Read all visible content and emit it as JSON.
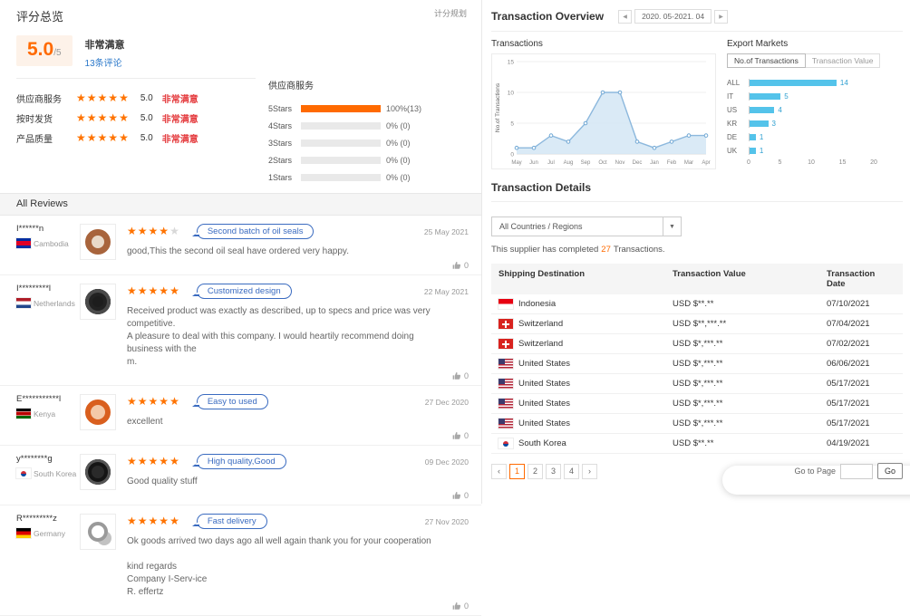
{
  "icons": {
    "prev_arrow": "◀",
    "next_arrow": "▶",
    "chevron_down": "▼",
    "page_prev": "‹",
    "page_next": "›",
    "star": "★"
  },
  "left": {
    "title": "评分总览",
    "scoring_rules": "计分规划",
    "summary": {
      "score": "5.0",
      "denominator": "/5",
      "verdict": "非常满意",
      "reviews_link": "13条评论"
    },
    "rating_rows": [
      {
        "label": "供应商服务",
        "stars": 5,
        "score": "5.0",
        "verdict": "非常满意"
      },
      {
        "label": "按时发货",
        "stars": 5,
        "score": "5.0",
        "verdict": "非常满意"
      },
      {
        "label": "产品质量",
        "stars": 5,
        "score": "5.0",
        "verdict": "非常满意"
      }
    ],
    "breakdown": {
      "title": "供应商服务",
      "rows": [
        {
          "label": "5Stars",
          "percent": 100,
          "value": "100%(13)"
        },
        {
          "label": "4Stars",
          "percent": 0,
          "value": "0%  (0)"
        },
        {
          "label": "3Stars",
          "percent": 0,
          "value": "0%  (0)"
        },
        {
          "label": "2Stars",
          "percent": 0,
          "value": "0%  (0)"
        },
        {
          "label": "1Stars",
          "percent": 0,
          "value": "0%  (0)"
        }
      ]
    },
    "reviews_header": "All Reviews",
    "reviews": [
      {
        "name": "I******n",
        "country": "Cambodia",
        "flag": "kh",
        "stars": 4,
        "tag": "Second batch of oil seals",
        "text": "good,This the second oil seal have ordered very happy.",
        "date": "25 May 2021",
        "likes": "0"
      },
      {
        "name": "I*********l",
        "country": "Netherlands",
        "flag": "nl",
        "stars": 5,
        "tag": "Customized design",
        "text": "Received product was exactly as described, up to specs and price was very competitive.\nA pleasure to deal with this company. I would heartily recommend doing business with the\nm.",
        "date": "22 May 2021",
        "likes": "0"
      },
      {
        "name": "E***********l",
        "country": "Kenya",
        "flag": "ke",
        "stars": 5,
        "tag": "Easy to used",
        "text": "excellent",
        "date": "27 Dec 2020",
        "likes": "0"
      },
      {
        "name": "y********g",
        "country": "South Korea",
        "flag": "kr",
        "stars": 5,
        "tag": "High quality,Good",
        "text": "Good quality stuff",
        "date": "09 Dec 2020",
        "likes": "0"
      },
      {
        "name": "R*********z",
        "country": "Germany",
        "flag": "de",
        "stars": 5,
        "tag": "Fast delivery",
        "text": "Ok goods arrived two days ago all well again thank you for your cooperation\n\nkind regards\nCompany I-Serv-ice\nR. effertz",
        "date": "27 Nov 2020",
        "likes": "0"
      }
    ]
  },
  "right": {
    "overview_title": "Transaction Overview",
    "date_range": "2020. 05-2021. 04",
    "transactions_title": "Transactions",
    "export_title": "Export Markets",
    "details_title": "Transaction Details",
    "country_filter": "All Countries / Regions",
    "completed_prefix": "This supplier has completed",
    "completed_count": "27",
    "completed_suffix": "Transactions.",
    "table": {
      "headers": [
        "Shipping Destination",
        "Transaction Value",
        "Transaction Date"
      ],
      "rows": [
        {
          "country": "Indonesia",
          "flag": "id",
          "value": "USD $**.**",
          "date": "07/10/2021"
        },
        {
          "country": "Switzerland",
          "flag": "ch",
          "value": "USD $**,***.**",
          "date": "07/04/2021"
        },
        {
          "country": "Switzerland",
          "flag": "ch",
          "value": "USD $*,***.**",
          "date": "07/02/2021"
        },
        {
          "country": "United States",
          "flag": "us",
          "value": "USD $*,***.**",
          "date": "06/06/2021"
        },
        {
          "country": "United States",
          "flag": "us",
          "value": "USD $*,***.**",
          "date": "05/17/2021"
        },
        {
          "country": "United States",
          "flag": "us",
          "value": "USD $*,***.**",
          "date": "05/17/2021"
        },
        {
          "country": "United States",
          "flag": "us",
          "value": "USD $*,***.**",
          "date": "05/17/2021"
        },
        {
          "country": "South Korea",
          "flag": "kr",
          "value": "USD $**.**",
          "date": "04/19/2021"
        }
      ]
    },
    "pagination": {
      "prev": "‹",
      "pages": [
        "1",
        "2",
        "3",
        "4"
      ],
      "active": "1",
      "next": "›",
      "goto_label": "Go to Page",
      "go_button": "Go"
    }
  },
  "chart_data": [
    {
      "type": "area",
      "title": "Transactions",
      "x": [
        "May",
        "Jun",
        "Jul",
        "Aug",
        "Sep",
        "Oct",
        "Nov",
        "Dec",
        "Jan",
        "Feb",
        "Mar",
        "Apr"
      ],
      "series": [
        {
          "name": "No.of Transactions",
          "values": [
            1,
            1,
            3,
            2,
            5,
            10,
            10,
            2,
            1,
            2,
            3,
            3
          ]
        }
      ],
      "xlabel": "",
      "ylabel": "No.of Transactions",
      "ylim": [
        0,
        15
      ],
      "yticks": [
        0,
        5,
        10,
        15
      ],
      "grid": true,
      "legend": false
    },
    {
      "type": "bar",
      "title": "Export Markets",
      "orientation": "horizontal",
      "tabs": [
        "No.of Transactions",
        "Transaction Value"
      ],
      "active_tab": "No.of Transactions",
      "categories": [
        "ALL",
        "IT",
        "US",
        "KR",
        "DE",
        "UK"
      ],
      "values": [
        14,
        5,
        4,
        3,
        1,
        1
      ],
      "xlim": [
        0,
        20
      ],
      "xticks": [
        0,
        5,
        10,
        15,
        20
      ],
      "bar_color": "#54c3ea"
    }
  ]
}
